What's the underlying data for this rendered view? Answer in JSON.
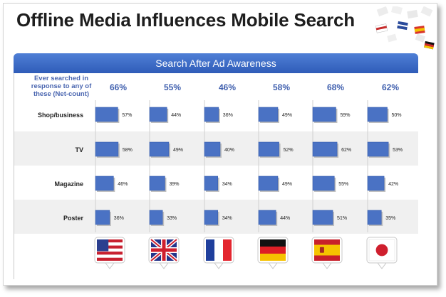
{
  "title": "Offline Media Influences Mobile Search",
  "header": "Search After Ad Awareness",
  "question_label": "Ever searched in response to any of these (Net-count)",
  "chart_data": {
    "type": "bar",
    "orientation": "horizontal-small-multiples",
    "title": "Search After Ad Awareness",
    "categories": [
      "Shop/business",
      "TV",
      "Magazine",
      "Poster"
    ],
    "columns": [
      {
        "flag": "usa-flag",
        "total": "66%",
        "values": [
          57,
          58,
          46,
          36
        ]
      },
      {
        "flag": "uk-flag",
        "total": "55%",
        "values": [
          44,
          49,
          39,
          33
        ]
      },
      {
        "flag": "france-flag",
        "total": "46%",
        "values": [
          36,
          40,
          34,
          34
        ]
      },
      {
        "flag": "germany-flag",
        "total": "58%",
        "values": [
          49,
          52,
          49,
          44
        ]
      },
      {
        "flag": "spain-flag",
        "total": "68%",
        "values": [
          59,
          62,
          55,
          51
        ]
      },
      {
        "flag": "japan-flag",
        "total": "62%",
        "values": [
          50,
          53,
          42,
          35
        ]
      }
    ],
    "value_suffix": "%",
    "bar_color": "#4a72c4",
    "header_color": "#3a67c6"
  }
}
